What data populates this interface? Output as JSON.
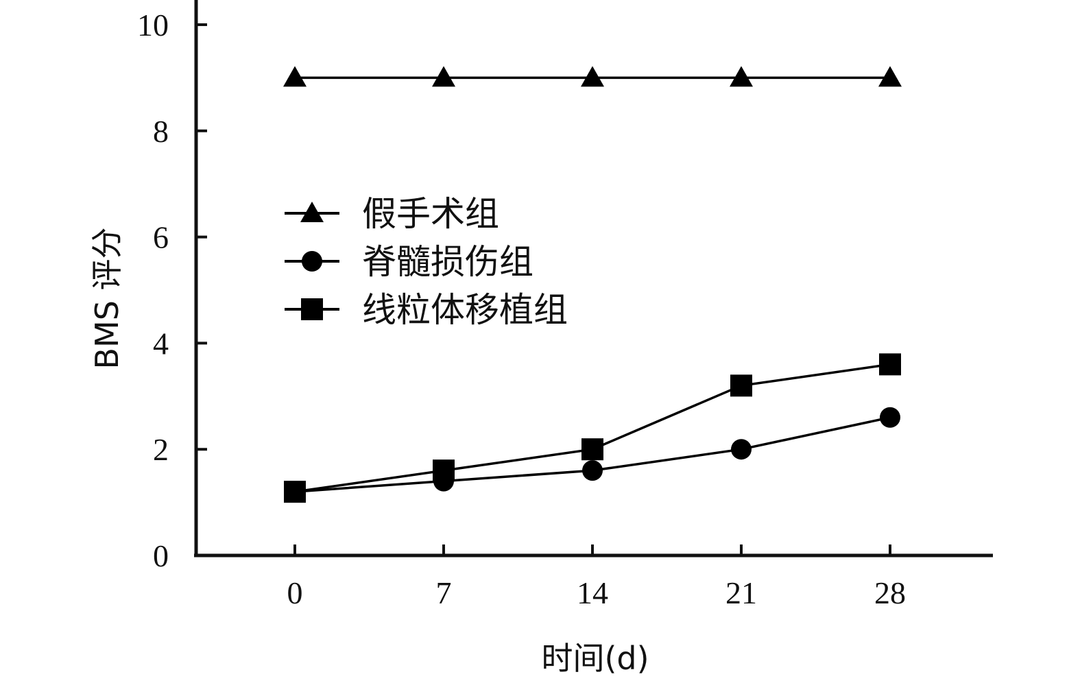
{
  "chart_data": {
    "type": "line",
    "title": "",
    "xlabel": "时间(d)",
    "ylabel": "BMS 评分",
    "x": [
      0,
      7,
      14,
      21,
      28
    ],
    "xticks": [
      "0",
      "7",
      "14",
      "21",
      "28"
    ],
    "yticks": [
      "0",
      "2",
      "4",
      "6",
      "8",
      "10"
    ],
    "ylim": [
      0,
      10
    ],
    "grid": false,
    "legend_position": "center-left",
    "series": [
      {
        "name": "假手术组",
        "marker": "triangle",
        "color": "#000000",
        "values": [
          9,
          9,
          9,
          9,
          9
        ]
      },
      {
        "name": "脊髓损伤组",
        "marker": "circle",
        "color": "#000000",
        "values": [
          1.2,
          1.4,
          1.6,
          2.0,
          2.6
        ]
      },
      {
        "name": "线粒体移植组",
        "marker": "square",
        "color": "#000000",
        "values": [
          1.2,
          1.6,
          2.0,
          3.2,
          3.6
        ]
      }
    ]
  }
}
